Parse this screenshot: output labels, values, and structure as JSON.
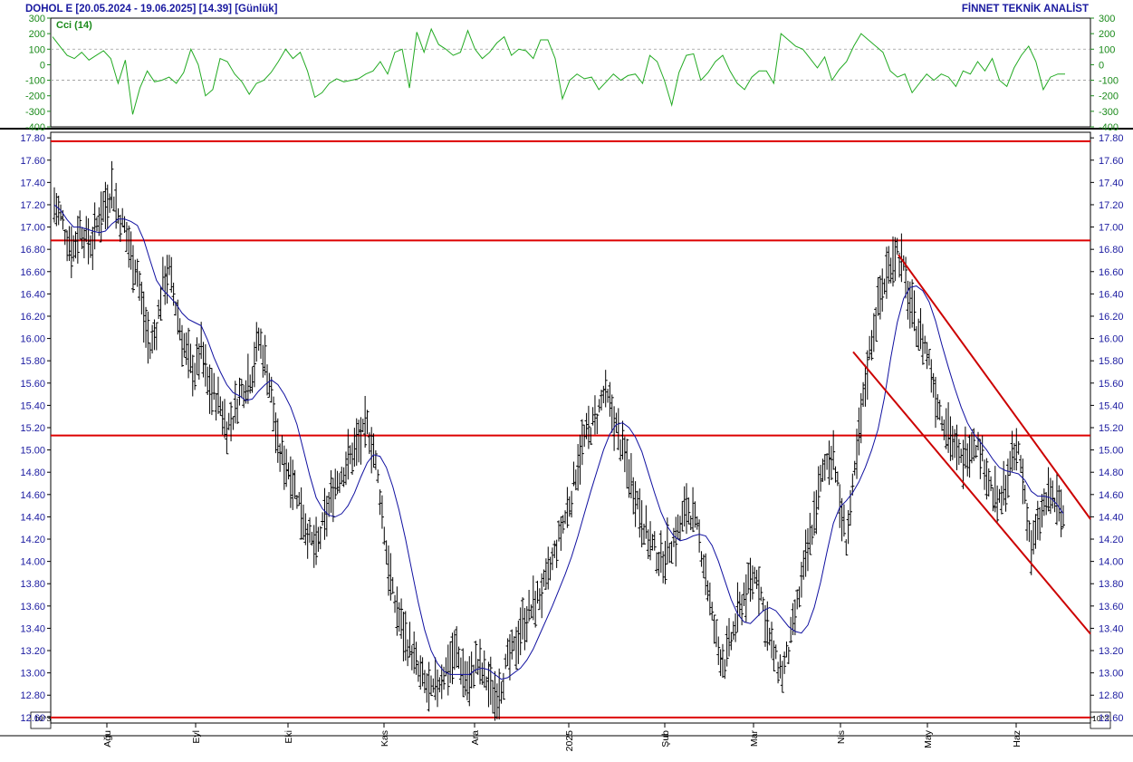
{
  "header": {
    "left_title": "DOHOL E  [20.05.2024 - 19.06.2025]  [14.39]  [Günlük]",
    "right_title": "FİNNET TEKNİK ANALİST"
  },
  "colors": {
    "price_bar": "#000000",
    "moving_average": "#1010a0",
    "cci_line": "#22aa22",
    "horizontal_levels": "#dd0000",
    "channel": "#cc0000",
    "axis_text": "#1a1aa0"
  },
  "chart_data": [
    {
      "type": "line",
      "panel": "indicator",
      "label": "Cci (14)",
      "ylim": [
        -400,
        300
      ],
      "yticks": [
        300,
        200,
        100,
        0,
        -100,
        -200,
        -300,
        -400
      ],
      "guide_levels": [
        100,
        -100
      ],
      "series": [
        {
          "name": "Cci (14)",
          "values": [
            180,
            120,
            60,
            40,
            80,
            30,
            60,
            90,
            40,
            -120,
            30,
            -320,
            -150,
            -40,
            -110,
            -100,
            -80,
            -120,
            -50,
            100,
            0,
            -200,
            -160,
            40,
            20,
            -60,
            -110,
            -190,
            -120,
            -100,
            -50,
            20,
            100,
            40,
            80,
            -40,
            -210,
            -180,
            -120,
            -90,
            -110,
            -100,
            -90,
            -60,
            -40,
            20,
            -60,
            80,
            100,
            -150,
            210,
            80,
            230,
            130,
            100,
            60,
            80,
            220,
            100,
            40,
            80,
            140,
            180,
            60,
            100,
            90,
            40,
            160,
            160,
            40,
            -220,
            -100,
            -60,
            -90,
            -80,
            -160,
            -110,
            -60,
            -100,
            -70,
            -60,
            -120,
            60,
            20,
            -100,
            -260,
            -50,
            60,
            70,
            -100,
            -50,
            20,
            60,
            -40,
            -120,
            -160,
            -80,
            -40,
            -40,
            -120,
            200,
            160,
            120,
            100,
            40,
            -20,
            50,
            -100,
            -30,
            20,
            120,
            200,
            160,
            120,
            80,
            -40,
            -80,
            -60,
            -180,
            -120,
            -60,
            -100,
            -60,
            -80,
            -140,
            -40,
            -60,
            20,
            -40,
            40,
            -100,
            -140,
            -20,
            60,
            120,
            20,
            -160,
            -80,
            -60,
            -60
          ]
        }
      ]
    },
    {
      "type": "bar",
      "subtype": "ohlc",
      "panel": "price",
      "ylim": [
        12.55,
        17.85
      ],
      "yticks": [
        17.8,
        17.6,
        17.4,
        17.2,
        17.0,
        16.8,
        16.6,
        16.4,
        16.2,
        16.0,
        15.8,
        15.6,
        15.4,
        15.2,
        15.0,
        14.8,
        14.6,
        14.4,
        14.2,
        14.0,
        13.8,
        13.6,
        13.4,
        13.2,
        13.0,
        12.8,
        12.6
      ],
      "x_categories": [
        "Ağu",
        "Eyl",
        "Eki",
        "Kas",
        "Ara",
        "2025",
        "Şub",
        "Mar",
        "Nis",
        "May",
        "Haz"
      ],
      "scale_note": "10^3",
      "horizontal_levels": [
        17.77,
        16.88,
        15.13,
        12.6
      ],
      "channel_upper": [
        [
          16.75,
          14.38
        ]
      ],
      "channel_lower": [
        [
          15.88,
          13.35
        ]
      ],
      "closes": [
        17.2,
        17.1,
        16.9,
        16.8,
        17.0,
        16.9,
        16.85,
        17.1,
        17.2,
        17.35,
        17.1,
        17.0,
        16.75,
        16.6,
        16.2,
        15.9,
        16.1,
        16.5,
        16.6,
        16.3,
        16.0,
        15.8,
        15.7,
        15.9,
        15.6,
        15.5,
        15.4,
        15.2,
        15.3,
        15.5,
        15.6,
        15.7,
        16.0,
        15.8,
        15.5,
        15.0,
        14.9,
        14.8,
        14.6,
        14.4,
        14.2,
        14.1,
        14.3,
        14.5,
        14.7,
        14.8,
        14.9,
        15.0,
        15.1,
        15.2,
        15.0,
        14.6,
        14.1,
        13.7,
        13.5,
        13.3,
        13.2,
        13.0,
        12.9,
        12.8,
        12.9,
        13.0,
        13.1,
        13.2,
        13.0,
        12.9,
        13.1,
        13.0,
        12.9,
        12.8,
        12.9,
        13.1,
        13.2,
        13.4,
        13.5,
        13.6,
        13.7,
        13.8,
        14.0,
        14.2,
        14.4,
        14.6,
        14.9,
        15.1,
        15.2,
        15.3,
        15.5,
        15.4,
        15.2,
        15.0,
        14.8,
        14.6,
        14.4,
        14.2,
        14.1,
        14.0,
        14.1,
        14.2,
        14.3,
        14.5,
        14.4,
        14.2,
        13.9,
        13.5,
        13.2,
        13.1,
        13.3,
        13.5,
        13.7,
        13.8,
        13.9,
        13.6,
        13.3,
        13.1,
        13.0,
        13.2,
        13.5,
        13.8,
        14.1,
        14.4,
        14.7,
        14.9,
        15.0,
        14.5,
        14.2,
        14.6,
        15.1,
        15.6,
        16.0,
        16.3,
        16.5,
        16.7,
        16.8,
        16.6,
        16.3,
        16.1,
        16.0,
        15.8,
        15.5,
        15.3,
        15.2,
        15.0,
        14.9,
        15.0,
        15.1,
        15.0,
        14.8,
        14.6,
        14.5,
        14.7,
        14.9,
        15.0,
        14.6,
        14.1,
        14.3,
        14.5,
        14.6,
        14.5,
        14.4
      ]
    }
  ],
  "price_axis_overlay": "10^3"
}
